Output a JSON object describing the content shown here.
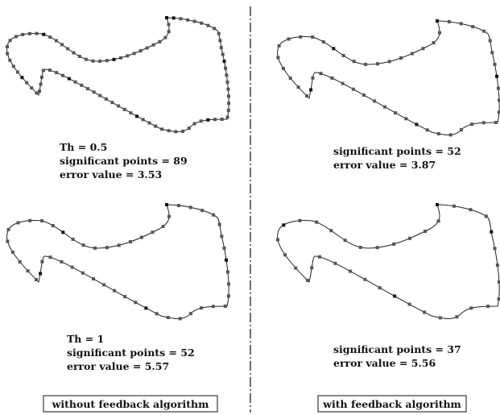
{
  "panels": [
    {
      "id": "tl",
      "lines": [
        "Th = 0.5",
        "significant points = 89",
        "error value = 3.53"
      ]
    },
    {
      "id": "tr",
      "lines": [
        "significant points = 52",
        "error value = 3.87"
      ]
    },
    {
      "id": "bl",
      "lines": [
        "Th = 1",
        "significant points = 52",
        "error value = 5.57"
      ]
    },
    {
      "id": "br",
      "lines": [
        "significant points = 37",
        "error value = 5.56"
      ]
    }
  ],
  "captions": {
    "left": "without feedback algorithm",
    "right": "with feedback algorithm"
  },
  "colors": {
    "point": "#555555",
    "point_dark": "#111111",
    "line": "#222222"
  }
}
